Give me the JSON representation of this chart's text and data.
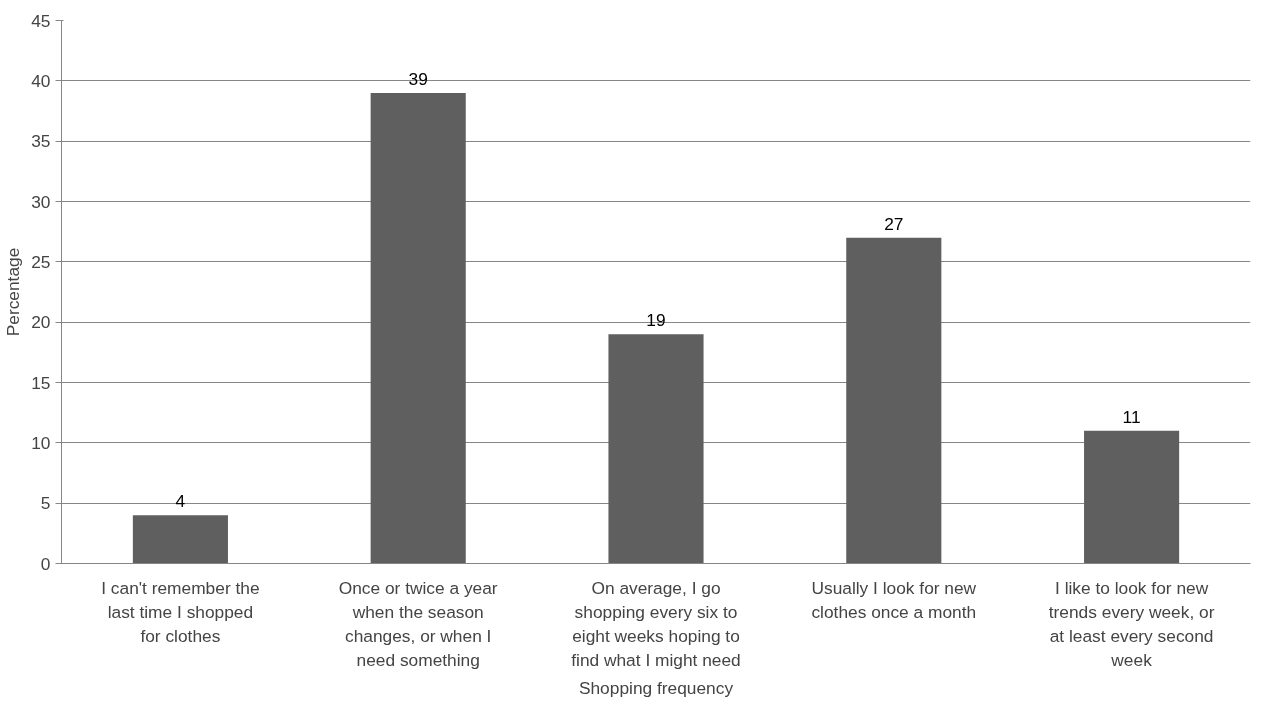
{
  "chart_data": {
    "type": "bar",
    "xlabel": "Shopping frequency",
    "ylabel": "Percentage",
    "categories": [
      "I can't remember the last time I shopped for clothes",
      "Once or twice a year when the season changes, or when I need something",
      "On average, I go shopping every six to eight weeks hoping to find what I might need",
      "Usually I look for new clothes once a month",
      "I like to look for new trends every week, or at least every second week"
    ],
    "values": [
      4,
      39,
      19,
      27,
      11
    ],
    "color": "#5f5f5f",
    "ylim": [
      0,
      45
    ],
    "yticks": [
      0,
      5,
      10,
      15,
      20,
      25,
      30,
      35,
      40,
      45
    ],
    "grid": "y",
    "data_labels": true
  }
}
